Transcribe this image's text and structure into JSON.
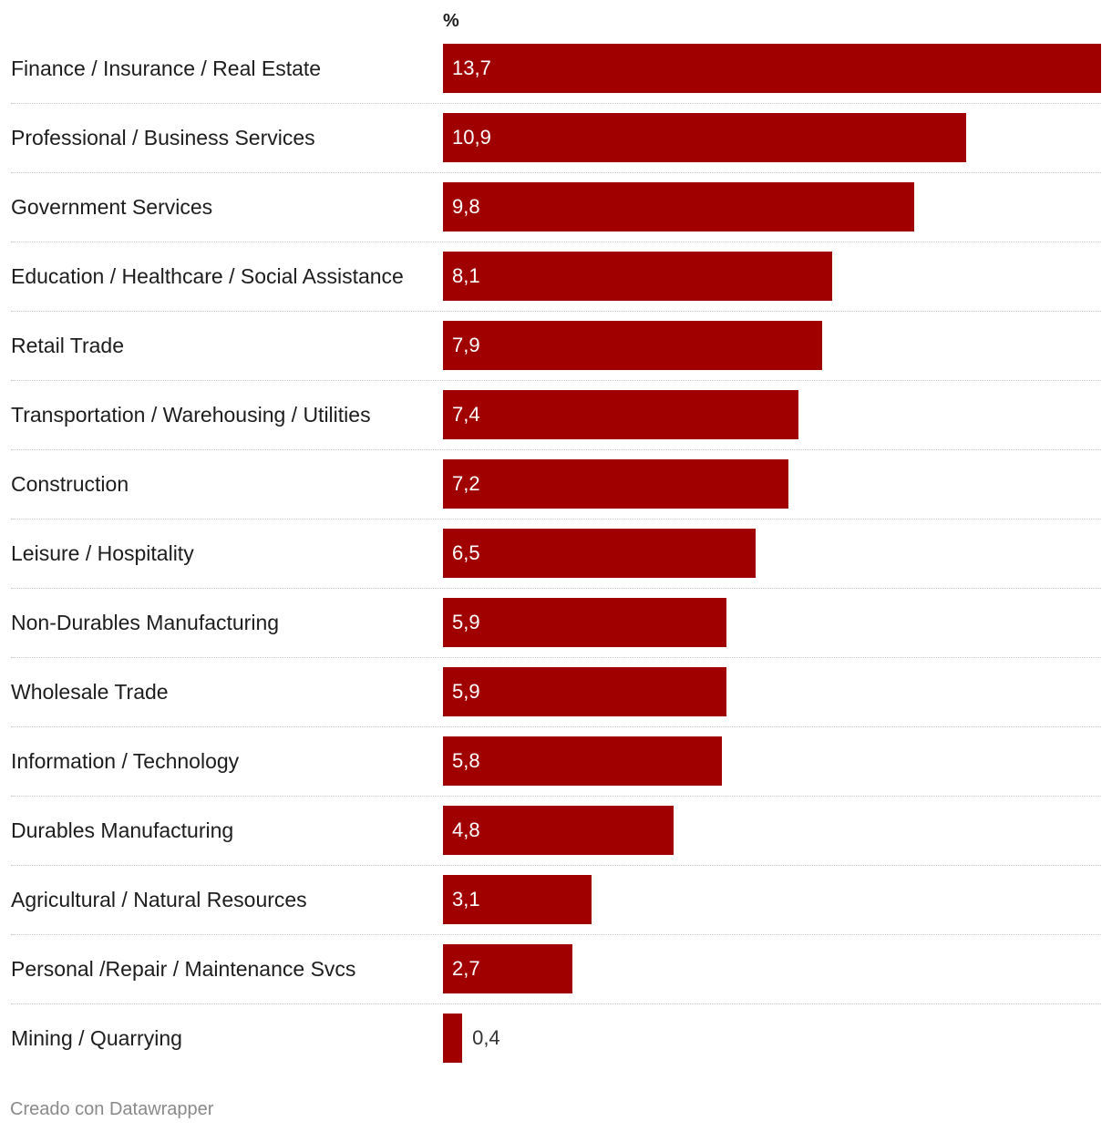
{
  "chart_data": {
    "type": "bar",
    "orientation": "horizontal",
    "unit_label": "%",
    "categories": [
      "Finance / Insurance / Real Estate",
      "Professional / Business Services",
      "Government Services",
      "Education / Healthcare / Social Assistance",
      "Retail Trade",
      "Transportation / Warehousing / Utilities",
      "Construction",
      "Leisure / Hospitality",
      "Non-Durables Manufacturing",
      "Wholesale Trade",
      "Information / Technology",
      "Durables Manufacturing",
      "Agricultural / Natural Resources",
      "Personal /Repair / Maintenance Svcs",
      "Mining / Quarrying"
    ],
    "values": [
      13.7,
      10.9,
      9.8,
      8.1,
      7.9,
      7.4,
      7.2,
      6.5,
      5.9,
      5.9,
      5.8,
      4.8,
      3.1,
      2.7,
      0.4
    ],
    "value_labels": [
      "13,7",
      "10,9",
      "9,8",
      "8,1",
      "7,9",
      "7,4",
      "7,2",
      "6,5",
      "5,9",
      "5,9",
      "5,8",
      "4,8",
      "3,1",
      "2,7",
      "0,4"
    ],
    "xlim": [
      0,
      13.7
    ],
    "bar_color": "#a00000",
    "grid": false,
    "legend": "none"
  },
  "footer": {
    "credit": "Creado con Datawrapper"
  }
}
